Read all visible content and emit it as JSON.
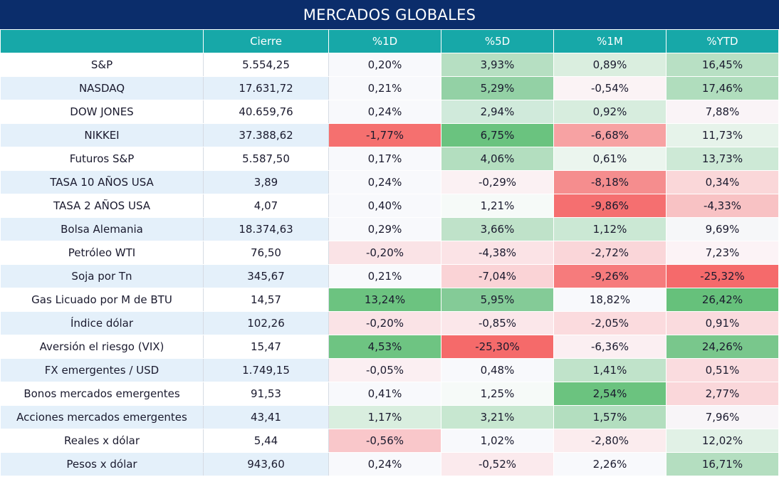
{
  "title": "MERCADOS GLOBALES",
  "columns": [
    "",
    "Cierre",
    "%1D",
    "%5D",
    "%1M",
    "%YTD"
  ],
  "rows": [
    {
      "name": "S&P",
      "close": "5.554,25",
      "d1": "0,20%",
      "d5": "3,93%",
      "m1": "0,89%",
      "ytd": "16,45%",
      "c": [
        "#f8f9fc",
        "#b6dfc2",
        "#daeedf",
        "#b8e0c4"
      ]
    },
    {
      "name": "NASDAQ",
      "close": "17.631,72",
      "d1": "0,21%",
      "d5": "5,29%",
      "m1": "-0,54%",
      "ytd": "17,46%",
      "c": [
        "#f8f9fc",
        "#93d1a5",
        "#fbf3f5",
        "#b0ddbd"
      ]
    },
    {
      "name": "DOW JONES",
      "close": "40.659,76",
      "d1": "0,24%",
      "d5": "2,94%",
      "m1": "0,92%",
      "ytd": "7,88%",
      "c": [
        "#f8f9fc",
        "#d0eadb",
        "#d7edde",
        "#faf4f7"
      ]
    },
    {
      "name": "NIKKEI",
      "close": "37.388,62",
      "d1": "-1,77%",
      "d5": "6,75%",
      "m1": "-6,68%",
      "ytd": "11,73%",
      "c": [
        "#f5706f",
        "#6ac37f",
        "#f7a2a3",
        "#e6f3ea"
      ]
    },
    {
      "name": "Futuros S&P",
      "close": "5.587,50",
      "d1": "0,17%",
      "d5": "4,06%",
      "m1": "0,61%",
      "ytd": "13,73%",
      "c": [
        "#f8f9fc",
        "#b3debf",
        "#ebf5ee",
        "#cde9d6"
      ]
    },
    {
      "name": "TASA 10 AÑOS USA",
      "close": "3,89",
      "d1": "0,24%",
      "d5": "-0,29%",
      "m1": "-8,18%",
      "ytd": "0,34%",
      "c": [
        "#f8f9fc",
        "#fbf1f3",
        "#f58d8e",
        "#fad7d9"
      ]
    },
    {
      "name": "TASA 2 AÑOS USA",
      "close": "4,07",
      "d1": "0,40%",
      "d5": "1,21%",
      "m1": "-9,86%",
      "ytd": "-4,33%",
      "c": [
        "#f8f9fc",
        "#f6faf8",
        "#f56f70",
        "#f8c2c4"
      ]
    },
    {
      "name": "Bolsa Alemania",
      "close": "18.374,63",
      "d1": "0,29%",
      "d5": "3,66%",
      "m1": "1,12%",
      "ytd": "9,69%",
      "c": [
        "#f8f9fc",
        "#bfe2c9",
        "#cbe8d4",
        "#f6f7f9"
      ]
    },
    {
      "name": "Petróleo WTI",
      "close": "76,50",
      "d1": "-0,20%",
      "d5": "-4,38%",
      "m1": "-2,72%",
      "ytd": "7,23%",
      "c": [
        "#fae3e6",
        "#fbe3e6",
        "#fad6d9",
        "#fcf3f6"
      ]
    },
    {
      "name": "Soja por Tn",
      "close": "345,67",
      "d1": "0,21%",
      "d5": "-7,04%",
      "m1": "-9,26%",
      "ytd": "-25,32%",
      "c": [
        "#f8f9fc",
        "#fad3d6",
        "#f67b7c",
        "#f56a6b"
      ]
    },
    {
      "name": "Gas Licuado por M de BTU",
      "close": "14,57",
      "d1": "13,24%",
      "d5": "5,95%",
      "m1": "18,82%",
      "ytd": "26,42%",
      "c": [
        "#6cc380",
        "#84cb97",
        "#f8f9fc",
        "#66c17b"
      ]
    },
    {
      "name": "Índice dólar",
      "close": "102,26",
      "d1": "-0,20%",
      "d5": "-0,85%",
      "m1": "-2,05%",
      "ytd": "0,91%",
      "c": [
        "#fae3e6",
        "#fbe7ea",
        "#fbdbde",
        "#fadbde"
      ]
    },
    {
      "name": "Aversión el riesgo (VIX)",
      "close": "15,47",
      "d1": "4,53%",
      "d5": "-25,30%",
      "m1": "-6,36%",
      "ytd": "24,26%",
      "c": [
        "#6ec482",
        "#f56a6a",
        "#fbeff2",
        "#79c78c"
      ]
    },
    {
      "name": "FX emergentes / USD",
      "close": "1.749,15",
      "d1": "-0,05%",
      "d5": "0,48%",
      "m1": "1,41%",
      "ytd": "0,51%",
      "c": [
        "#fbeff2",
        "#f8f9fc",
        "#c0e3ca",
        "#fadcdf"
      ]
    },
    {
      "name": "Bonos mercados emergentes",
      "close": "91,53",
      "d1": "0,41%",
      "d5": "1,25%",
      "m1": "2,54%",
      "ytd": "2,77%",
      "c": [
        "#f8f9fc",
        "#f6faf8",
        "#6bc37f",
        "#fad7da"
      ]
    },
    {
      "name": "Acciones mercados emergentes",
      "close": "43,41",
      "d1": "1,17%",
      "d5": "3,21%",
      "m1": "1,57%",
      "ytd": "7,96%",
      "c": [
        "#d9eedf",
        "#c7e7d0",
        "#b3debf",
        "#f8f5f8"
      ]
    },
    {
      "name": "Reales x dólar",
      "close": "5,44",
      "d1": "-0,56%",
      "d5": "1,02%",
      "m1": "-2,80%",
      "ytd": "12,02%",
      "c": [
        "#f9c7ca",
        "#f8f9fc",
        "#fbecee",
        "#e1f1e6"
      ]
    },
    {
      "name": "Pesos x dólar",
      "close": "943,60",
      "d1": "0,24%",
      "d5": "-0,52%",
      "m1": "2,26%",
      "ytd": "16,71%",
      "c": [
        "#f8f9fc",
        "#fbeaed",
        "#f8f9fc",
        "#b4dec0"
      ]
    }
  ]
}
